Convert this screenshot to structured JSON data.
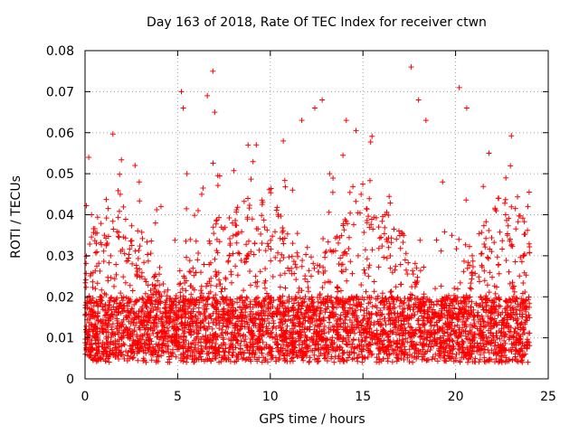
{
  "chart_data": {
    "type": "scatter",
    "title": "Day 163 of 2018, Rate Of TEC Index for receiver ctwn",
    "xlabel": "GPS time / hours",
    "ylabel": "ROTI / TECUs",
    "xlim": [
      0,
      25
    ],
    "ylim": [
      0,
      0.08
    ],
    "x_ticks": [
      0,
      5,
      10,
      15,
      20,
      25
    ],
    "x_tick_labels": [
      "0",
      "5",
      "10",
      "15",
      "20",
      "25"
    ],
    "y_ticks": [
      0,
      0.01,
      0.02,
      0.03,
      0.04,
      0.05,
      0.06,
      0.07,
      0.08
    ],
    "y_tick_labels": [
      "0",
      "0.01",
      "0.02",
      "0.03",
      "0.04",
      "0.05",
      "0.06",
      "0.07",
      "0.08"
    ],
    "grid": true,
    "marker": "+",
    "color": "#ff0000",
    "series": [
      {
        "name": "ROTI",
        "x": [
          0.05,
          0.2,
          0.35,
          0.5,
          0.8,
          1.2,
          1.6,
          1.9,
          2.3,
          2.7,
          3.0,
          3.4,
          3.8,
          4.1,
          4.5,
          4.9,
          5.2,
          5.3,
          5.5,
          5.9,
          6.3,
          6.6,
          6.9,
          7.0,
          7.4,
          7.8,
          8.3,
          8.8,
          9.2,
          9.7,
          10.2,
          10.7,
          11.2,
          11.7,
          12.0,
          12.4,
          12.8,
          13.2,
          13.7,
          14.1,
          14.5,
          14.9,
          15.3,
          15.8,
          16.2,
          16.7,
          17.2,
          17.6,
          18.0,
          18.4,
          18.9,
          19.3,
          19.8,
          20.2,
          20.6,
          20.9,
          21.3,
          21.8,
          22.3,
          22.7,
          23.1,
          23.5,
          23.9
        ],
        "y": [
          0.012,
          0.054,
          0.04,
          0.015,
          0.02,
          0.013,
          0.011,
          0.045,
          0.012,
          0.052,
          0.014,
          0.02,
          0.038,
          0.042,
          0.016,
          0.012,
          0.07,
          0.066,
          0.05,
          0.018,
          0.045,
          0.069,
          0.075,
          0.065,
          0.022,
          0.03,
          0.014,
          0.057,
          0.025,
          0.018,
          0.016,
          0.058,
          0.046,
          0.063,
          0.032,
          0.066,
          0.068,
          0.05,
          0.028,
          0.063,
          0.018,
          0.045,
          0.025,
          0.014,
          0.04,
          0.016,
          0.035,
          0.076,
          0.068,
          0.063,
          0.022,
          0.048,
          0.035,
          0.071,
          0.066,
          0.03,
          0.018,
          0.055,
          0.044,
          0.04,
          0.022,
          0.012,
          0.042
        ]
      }
    ]
  }
}
